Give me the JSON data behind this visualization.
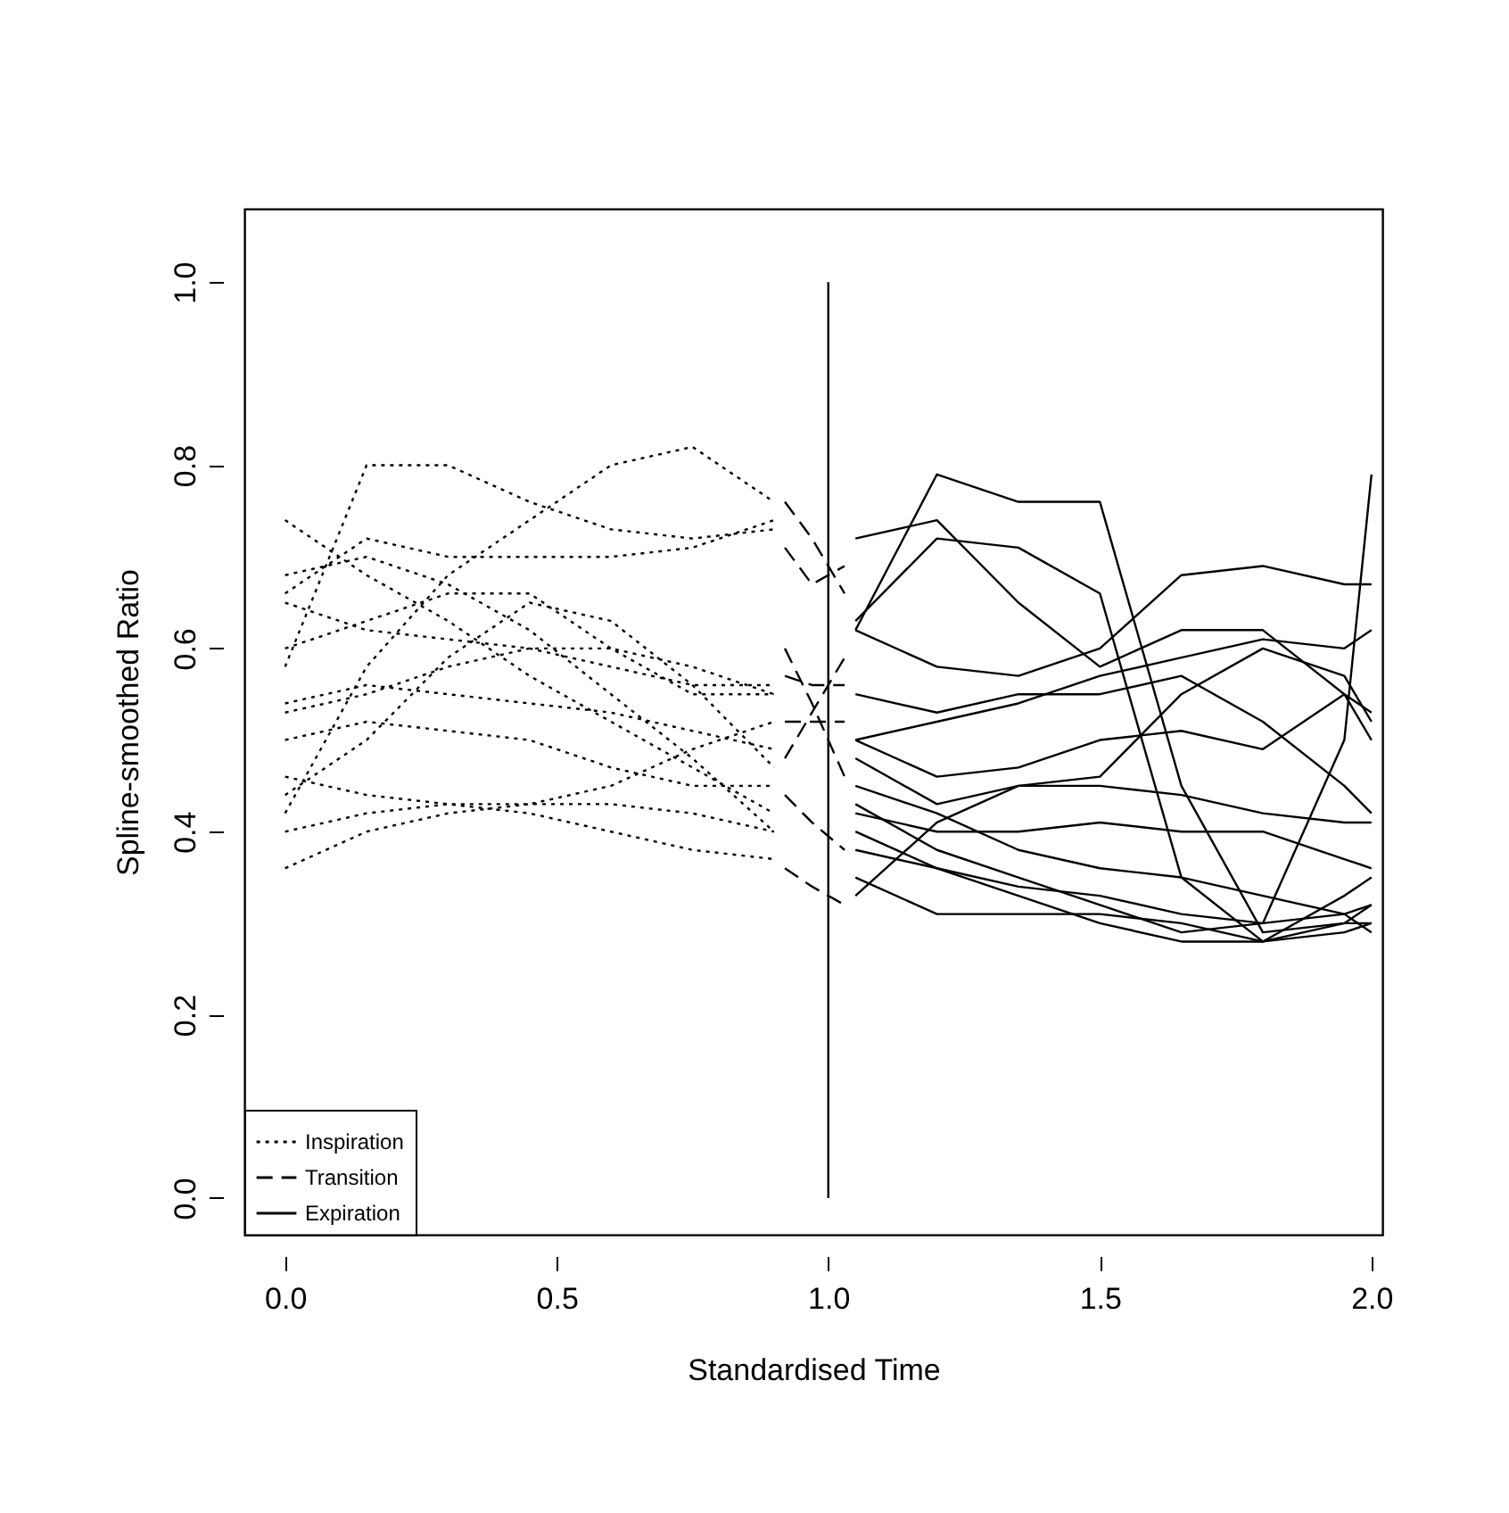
{
  "chart_data": {
    "type": "line",
    "xlabel": "Standardised Time",
    "ylabel": "Spline-smoothed Ratio",
    "xlim": [
      -0.075,
      2.02
    ],
    "ylim": [
      -0.04,
      1.08
    ],
    "xticks": [
      {
        "value": 0,
        "label": "0.0"
      },
      0.5,
      {
        "value": 1,
        "label": "1.0"
      },
      1.5,
      {
        "value": 2,
        "label": "2.0"
      }
    ],
    "yticks": [
      {
        "value": 0,
        "label": "0.0"
      },
      0.2,
      0.4,
      0.6,
      0.8,
      {
        "value": 1,
        "label": "1.0"
      }
    ],
    "grid": false,
    "legend": "bottom left",
    "marker": "none",
    "ref_lines": [
      {
        "axis": "x",
        "value": 1.0,
        "color": "#000000",
        "line_style": "solid"
      }
    ],
    "series": [
      {
        "name": "Inspiration",
        "color": "#000000",
        "line_style": "dotted",
        "x": [
          0,
          0.15,
          0.3,
          0.45,
          0.6,
          0.75,
          0.9
        ],
        "values": [
          0.58,
          0.8,
          0.8,
          0.76,
          0.73,
          0.72,
          0.73
        ]
      },
      {
        "color": "#000000",
        "line_style": "dotted",
        "x": [
          0,
          0.15,
          0.3,
          0.45,
          0.6,
          0.75,
          0.9
        ],
        "values": [
          0.36,
          0.4,
          0.42,
          0.43,
          0.43,
          0.42,
          0.4
        ]
      },
      {
        "color": "#000000",
        "line_style": "dotted",
        "x": [
          0,
          0.15,
          0.3,
          0.45,
          0.6,
          0.75,
          0.9
        ],
        "values": [
          0.42,
          0.58,
          0.68,
          0.74,
          0.8,
          0.82,
          0.76
        ]
      },
      {
        "color": "#000000",
        "line_style": "dotted",
        "x": [
          0,
          0.15,
          0.3,
          0.45,
          0.6,
          0.75,
          0.9
        ],
        "values": [
          0.74,
          0.68,
          0.63,
          0.57,
          0.52,
          0.47,
          0.42
        ]
      },
      {
        "color": "#000000",
        "line_style": "dotted",
        "x": [
          0,
          0.15,
          0.3,
          0.45,
          0.6,
          0.75,
          0.9
        ],
        "values": [
          0.66,
          0.72,
          0.7,
          0.7,
          0.7,
          0.71,
          0.74
        ]
      },
      {
        "color": "#000000",
        "line_style": "dotted",
        "x": [
          0,
          0.15,
          0.3,
          0.45,
          0.6,
          0.75,
          0.9
        ],
        "values": [
          0.6,
          0.63,
          0.66,
          0.66,
          0.6,
          0.55,
          0.55
        ]
      },
      {
        "color": "#000000",
        "line_style": "dotted",
        "x": [
          0,
          0.15,
          0.3,
          0.45,
          0.6,
          0.75,
          0.9
        ],
        "values": [
          0.54,
          0.56,
          0.55,
          0.54,
          0.53,
          0.51,
          0.49
        ]
      },
      {
        "color": "#000000",
        "line_style": "dotted",
        "x": [
          0,
          0.15,
          0.3,
          0.45,
          0.6,
          0.75,
          0.9
        ],
        "values": [
          0.5,
          0.52,
          0.51,
          0.5,
          0.47,
          0.45,
          0.45
        ]
      },
      {
        "color": "#000000",
        "line_style": "dotted",
        "x": [
          0,
          0.15,
          0.3,
          0.45,
          0.6,
          0.75,
          0.9
        ],
        "values": [
          0.46,
          0.44,
          0.43,
          0.43,
          0.45,
          0.49,
          0.52
        ]
      },
      {
        "color": "#000000",
        "line_style": "dotted",
        "x": [
          0,
          0.15,
          0.3,
          0.45,
          0.6,
          0.75,
          0.9
        ],
        "values": [
          0.65,
          0.62,
          0.61,
          0.6,
          0.58,
          0.56,
          0.56
        ]
      },
      {
        "color": "#000000",
        "line_style": "dotted",
        "x": [
          0,
          0.15,
          0.3,
          0.45,
          0.6,
          0.75,
          0.9
        ],
        "values": [
          0.4,
          0.42,
          0.43,
          0.42,
          0.4,
          0.38,
          0.37
        ]
      },
      {
        "color": "#000000",
        "line_style": "dotted",
        "x": [
          0,
          0.15,
          0.3,
          0.45,
          0.6,
          0.75,
          0.9
        ],
        "values": [
          0.68,
          0.7,
          0.67,
          0.62,
          0.55,
          0.48,
          0.4
        ]
      },
      {
        "color": "#000000",
        "line_style": "dotted",
        "x": [
          0,
          0.15,
          0.3,
          0.45,
          0.6,
          0.75,
          0.9
        ],
        "values": [
          0.53,
          0.55,
          0.58,
          0.6,
          0.6,
          0.58,
          0.55
        ]
      },
      {
        "color": "#000000",
        "line_style": "dotted",
        "x": [
          0,
          0.15,
          0.3,
          0.45,
          0.6,
          0.75,
          0.9
        ],
        "values": [
          0.44,
          0.5,
          0.59,
          0.65,
          0.63,
          0.56,
          0.47
        ]
      },
      {
        "name": "Transition",
        "color": "#000000",
        "line_style": "dashed",
        "x": [
          0.92,
          0.97,
          1.03
        ],
        "values": [
          0.71,
          0.67,
          0.69
        ]
      },
      {
        "color": "#000000",
        "line_style": "dashed",
        "x": [
          0.92,
          0.97,
          1.03
        ],
        "values": [
          0.76,
          0.72,
          0.66
        ]
      },
      {
        "color": "#000000",
        "line_style": "dashed",
        "x": [
          0.92,
          0.97,
          1.03
        ],
        "values": [
          0.57,
          0.56,
          0.56
        ]
      },
      {
        "color": "#000000",
        "line_style": "dashed",
        "x": [
          0.92,
          0.97,
          1.03
        ],
        "values": [
          0.52,
          0.52,
          0.52
        ]
      },
      {
        "color": "#000000",
        "line_style": "dashed",
        "x": [
          0.92,
          0.97,
          1.03
        ],
        "values": [
          0.44,
          0.41,
          0.38
        ]
      },
      {
        "color": "#000000",
        "line_style": "dashed",
        "x": [
          0.92,
          0.97,
          1.03
        ],
        "values": [
          0.36,
          0.34,
          0.32
        ]
      },
      {
        "color": "#000000",
        "line_style": "dashed",
        "x": [
          0.92,
          0.97,
          1.03
        ],
        "values": [
          0.48,
          0.53,
          0.59
        ]
      },
      {
        "color": "#000000",
        "line_style": "dashed",
        "x": [
          0.92,
          0.97,
          1.03
        ],
        "values": [
          0.6,
          0.54,
          0.46
        ]
      },
      {
        "name": "Expiration",
        "color": "#000000",
        "line_style": "solid",
        "x": [
          1.05,
          1.2,
          1.35,
          1.5,
          1.65,
          1.8,
          1.95,
          2.0
        ],
        "values": [
          0.62,
          0.79,
          0.76,
          0.76,
          0.45,
          0.29,
          0.3,
          0.3
        ]
      },
      {
        "color": "#000000",
        "line_style": "solid",
        "x": [
          1.05,
          1.2,
          1.35,
          1.5,
          1.65,
          1.8,
          1.95,
          2.0
        ],
        "values": [
          0.72,
          0.74,
          0.65,
          0.58,
          0.62,
          0.62,
          0.55,
          0.5
        ]
      },
      {
        "color": "#000000",
        "line_style": "solid",
        "x": [
          1.05,
          1.2,
          1.35,
          1.5,
          1.65,
          1.8,
          1.95,
          2.0
        ],
        "values": [
          0.63,
          0.72,
          0.71,
          0.66,
          0.35,
          0.28,
          0.3,
          0.32
        ]
      },
      {
        "color": "#000000",
        "line_style": "solid",
        "x": [
          1.05,
          1.2,
          1.35,
          1.5,
          1.65,
          1.8,
          1.95,
          2.0
        ],
        "values": [
          0.62,
          0.58,
          0.57,
          0.6,
          0.68,
          0.69,
          0.67,
          0.67
        ]
      },
      {
        "color": "#000000",
        "line_style": "solid",
        "x": [
          1.05,
          1.2,
          1.35,
          1.5,
          1.65,
          1.8,
          1.95,
          2.0
        ],
        "values": [
          0.5,
          0.52,
          0.54,
          0.57,
          0.59,
          0.61,
          0.6,
          0.62
        ]
      },
      {
        "color": "#000000",
        "line_style": "solid",
        "x": [
          1.05,
          1.2,
          1.35,
          1.5,
          1.65,
          1.8,
          1.95,
          2.0
        ],
        "values": [
          0.55,
          0.53,
          0.55,
          0.55,
          0.57,
          0.52,
          0.45,
          0.42
        ]
      },
      {
        "color": "#000000",
        "line_style": "solid",
        "x": [
          1.05,
          1.2,
          1.35,
          1.5,
          1.65,
          1.8,
          1.95,
          2.0
        ],
        "values": [
          0.5,
          0.46,
          0.47,
          0.5,
          0.51,
          0.49,
          0.55,
          0.53
        ]
      },
      {
        "color": "#000000",
        "line_style": "solid",
        "x": [
          1.05,
          1.2,
          1.35,
          1.5,
          1.65,
          1.8,
          1.95,
          2.0
        ],
        "values": [
          0.48,
          0.43,
          0.45,
          0.45,
          0.44,
          0.42,
          0.41,
          0.41
        ]
      },
      {
        "color": "#000000",
        "line_style": "solid",
        "x": [
          1.05,
          1.2,
          1.35,
          1.5,
          1.65,
          1.8,
          1.95,
          2.0
        ],
        "values": [
          0.42,
          0.4,
          0.4,
          0.41,
          0.4,
          0.4,
          0.37,
          0.36
        ]
      },
      {
        "color": "#000000",
        "line_style": "solid",
        "x": [
          1.05,
          1.2,
          1.35,
          1.5,
          1.65,
          1.8,
          1.95,
          2.0
        ],
        "values": [
          0.4,
          0.36,
          0.34,
          0.33,
          0.31,
          0.3,
          0.31,
          0.32
        ]
      },
      {
        "color": "#000000",
        "line_style": "solid",
        "x": [
          1.05,
          1.2,
          1.35,
          1.5,
          1.65,
          1.8,
          1.95,
          2.0
        ],
        "values": [
          0.35,
          0.31,
          0.31,
          0.31,
          0.3,
          0.28,
          0.29,
          0.3
        ]
      },
      {
        "color": "#000000",
        "line_style": "solid",
        "x": [
          1.05,
          1.2,
          1.35,
          1.5,
          1.65,
          1.8,
          1.95,
          2.0
        ],
        "values": [
          0.38,
          0.36,
          0.33,
          0.3,
          0.28,
          0.28,
          0.33,
          0.35
        ]
      },
      {
        "color": "#000000",
        "line_style": "solid",
        "x": [
          1.05,
          1.2,
          1.35,
          1.5,
          1.65,
          1.8,
          1.95,
          2.0
        ],
        "values": [
          0.45,
          0.42,
          0.38,
          0.36,
          0.35,
          0.33,
          0.31,
          0.29
        ]
      },
      {
        "color": "#000000",
        "line_style": "solid",
        "x": [
          1.05,
          1.2,
          1.35,
          1.5,
          1.65,
          1.8,
          1.95,
          2.0
        ],
        "values": [
          0.33,
          0.41,
          0.45,
          0.46,
          0.55,
          0.6,
          0.57,
          0.52
        ]
      },
      {
        "color": "#000000",
        "line_style": "solid",
        "x": [
          1.05,
          1.2,
          1.35,
          1.5,
          1.65,
          1.8,
          1.95,
          2.0
        ],
        "values": [
          0.43,
          0.38,
          0.35,
          0.32,
          0.29,
          0.3,
          0.5,
          0.79
        ]
      }
    ]
  }
}
